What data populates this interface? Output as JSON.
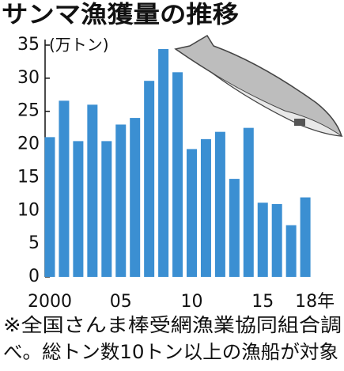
{
  "chart_data": {
    "type": "bar",
    "title": "サンマ漁獲量の推移",
    "y_label": "(万トン)",
    "categories": [
      "2000",
      null,
      null,
      null,
      null,
      "05",
      null,
      null,
      null,
      null,
      "10",
      null,
      null,
      null,
      null,
      "15",
      null,
      null,
      "18年"
    ],
    "values": [
      21.1,
      26.6,
      20.5,
      26.0,
      20.5,
      23.0,
      24.0,
      29.6,
      34.4,
      30.9,
      19.3,
      20.8,
      21.9,
      14.8,
      22.5,
      11.2,
      11.0,
      7.8,
      12.0
    ],
    "color": "#3b8fd2",
    "ylim": [
      0,
      35
    ],
    "yticks": [
      0,
      5,
      10,
      15,
      20,
      25,
      30,
      35
    ],
    "grid": false,
    "notes": [
      "※全国さんま棒受網漁業協同組合調",
      "べ。総トン数10トン以上の漁船が対象"
    ]
  }
}
